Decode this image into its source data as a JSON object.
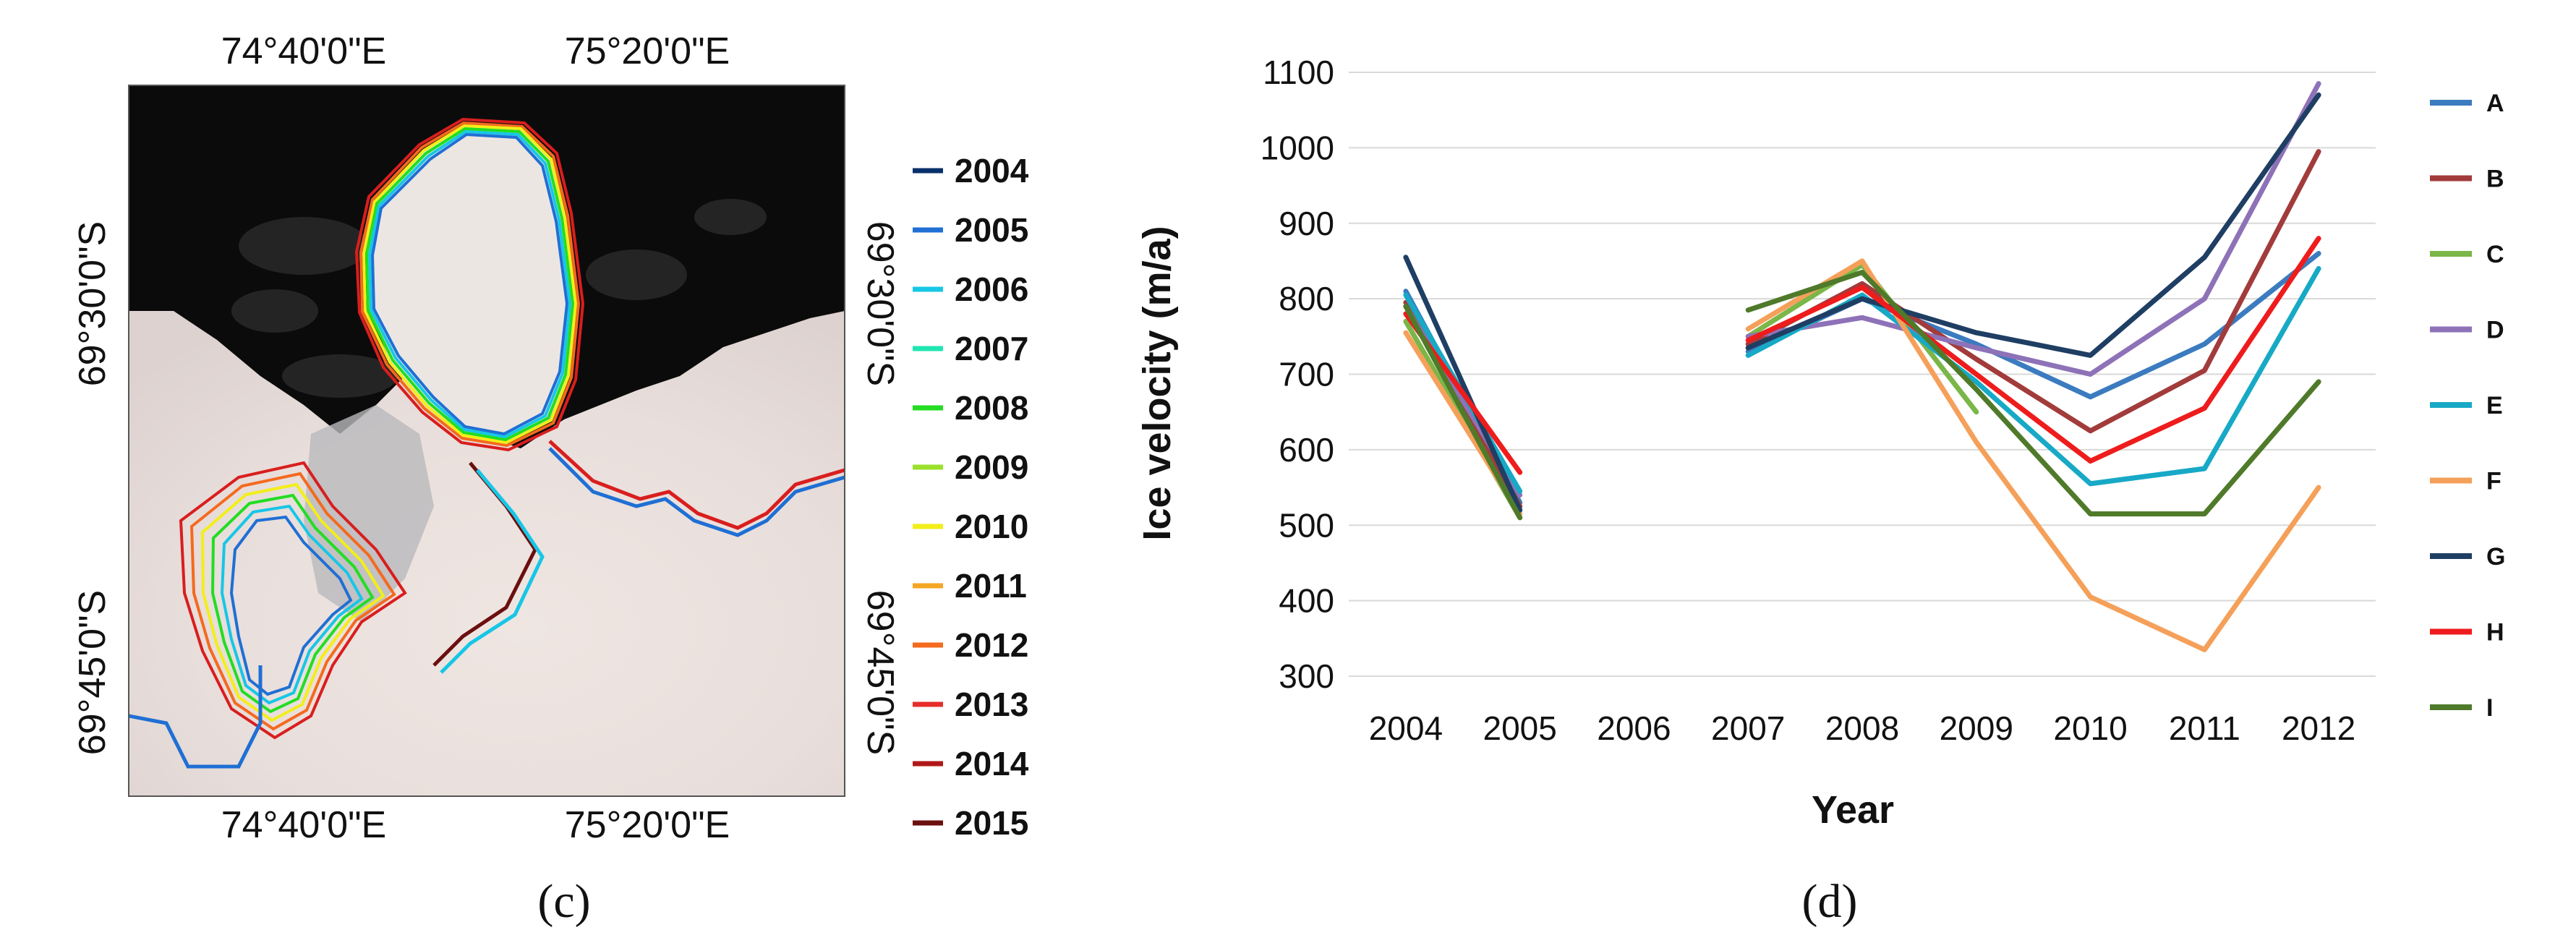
{
  "panel_c": {
    "label": "(c)",
    "top_lon_labels": [
      "74°40'0\"E",
      "75°20'0\"E"
    ],
    "bottom_lon_labels": [
      "74°40'0\"E",
      "75°20'0\"E"
    ],
    "left_lat_labels": [
      "69°30'0\"S",
      "69°45'0\"S"
    ],
    "right_lat_labels": [
      "69°30'0\"S",
      "69°45'0\"S"
    ],
    "legend": [
      {
        "year": "2004",
        "color": "#08306b"
      },
      {
        "year": "2005",
        "color": "#1f6fd4"
      },
      {
        "year": "2006",
        "color": "#17c6e6"
      },
      {
        "year": "2007",
        "color": "#20e6b0"
      },
      {
        "year": "2008",
        "color": "#22dd22"
      },
      {
        "year": "2009",
        "color": "#9be02a"
      },
      {
        "year": "2010",
        "color": "#f2ee1a"
      },
      {
        "year": "2011",
        "color": "#f5a623"
      },
      {
        "year": "2012",
        "color": "#f46a1f"
      },
      {
        "year": "2013",
        "color": "#e52e2a"
      },
      {
        "year": "2014",
        "color": "#b01818"
      },
      {
        "year": "2015",
        "color": "#6b0f0f"
      }
    ]
  },
  "panel_d": {
    "label": "(d)"
  },
  "chart_data": {
    "type": "line",
    "title": "",
    "xlabel": "Year",
    "ylabel": "Ice velocity (m/a)",
    "categories": [
      "2004",
      "2005",
      "2006",
      "2007",
      "2008",
      "2009",
      "2010",
      "2011",
      "2012"
    ],
    "yticks": [
      300,
      400,
      500,
      600,
      700,
      800,
      900,
      1000,
      1100
    ],
    "ylim": [
      300,
      1100
    ],
    "grid": true,
    "legend_position": "right",
    "series": [
      {
        "name": "A",
        "color": "#3b7bbf",
        "values": [
          810,
          530,
          null,
          730,
          800,
          740,
          670,
          740,
          860
        ]
      },
      {
        "name": "B",
        "color": "#a23b3b",
        "values": [
          795,
          525,
          null,
          740,
          820,
          720,
          625,
          705,
          995
        ]
      },
      {
        "name": "C",
        "color": "#7ab648",
        "values": [
          770,
          510,
          null,
          750,
          845,
          650,
          null,
          null,
          null
        ]
      },
      {
        "name": "D",
        "color": "#8e72b8",
        "values": [
          790,
          540,
          null,
          750,
          775,
          735,
          700,
          800,
          1085
        ]
      },
      {
        "name": "E",
        "color": "#17a9c6",
        "values": [
          805,
          545,
          null,
          725,
          805,
          690,
          555,
          575,
          840
        ]
      },
      {
        "name": "F",
        "color": "#f5a05a",
        "values": [
          755,
          515,
          null,
          760,
          850,
          610,
          405,
          335,
          550
        ]
      },
      {
        "name": "G",
        "color": "#1f3e63",
        "values": [
          855,
          520,
          null,
          735,
          800,
          755,
          725,
          855,
          1070
        ]
      },
      {
        "name": "H",
        "color": "#ee1c1c",
        "values": [
          780,
          570,
          null,
          745,
          815,
          700,
          585,
          655,
          880
        ]
      },
      {
        "name": "I",
        "color": "#4f7a2a",
        "values": [
          790,
          510,
          null,
          785,
          835,
          680,
          515,
          515,
          690
        ]
      }
    ]
  }
}
